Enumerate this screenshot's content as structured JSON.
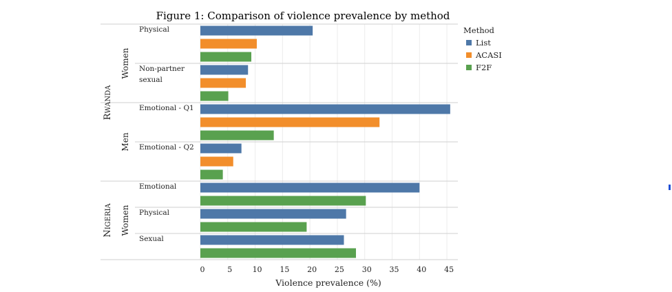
{
  "colors": {
    "List": "#4e78a8",
    "ACASI": "#f28e2b",
    "F2F": "#59a14f",
    "edge_marker": "#1f4fd6"
  },
  "chart_data": {
    "type": "bar",
    "orientation": "horizontal",
    "title": "Figure 1: Comparison of violence prevalence by method",
    "xlabel": "Violence prevalence (%)",
    "xlim": [
      0,
      47
    ],
    "xticks": [
      0,
      5,
      10,
      15,
      20,
      25,
      30,
      35,
      40,
      45
    ],
    "grid": "vertical",
    "legend": {
      "title": "Method",
      "placement": "right",
      "entries": [
        "List",
        "ACASI",
        "F2F"
      ]
    },
    "countries": [
      {
        "name": "Rwanda",
        "groups": [
          {
            "name": "Women",
            "rows": [
              {
                "label": [
                  "Physical"
                ],
                "bars": [
                  {
                    "method": "List",
                    "value": 20.5
                  },
                  {
                    "method": "ACASI",
                    "value": 10.3
                  },
                  {
                    "method": "F2F",
                    "value": 9.3
                  }
                ]
              },
              {
                "label": [
                  "Non-partner",
                  "sexual"
                ],
                "bars": [
                  {
                    "method": "List",
                    "value": 8.7
                  },
                  {
                    "method": "ACASI",
                    "value": 8.3
                  },
                  {
                    "method": "F2F",
                    "value": 5.1
                  }
                ]
              }
            ]
          },
          {
            "name": "Men",
            "rows": [
              {
                "label": [
                  "Emotional - Q1"
                ],
                "bars": [
                  {
                    "method": "List",
                    "value": 45.6
                  },
                  {
                    "method": "ACASI",
                    "value": 32.7
                  },
                  {
                    "method": "F2F",
                    "value": 13.4
                  }
                ]
              },
              {
                "label": [
                  "Emotional - Q2"
                ],
                "bars": [
                  {
                    "method": "List",
                    "value": 7.5
                  },
                  {
                    "method": "ACASI",
                    "value": 6.0
                  },
                  {
                    "method": "F2F",
                    "value": 4.1
                  }
                ]
              }
            ]
          }
        ]
      },
      {
        "name": "Nigeria",
        "groups": [
          {
            "name": "Women",
            "rows": [
              {
                "label": [
                  "Emotional"
                ],
                "bars": [
                  {
                    "method": "List",
                    "value": 40.0
                  },
                  {
                    "method": "F2F",
                    "value": 30.2
                  }
                ]
              },
              {
                "label": [
                  "Physical"
                ],
                "bars": [
                  {
                    "method": "List",
                    "value": 26.6
                  },
                  {
                    "method": "F2F",
                    "value": 19.4
                  }
                ]
              },
              {
                "label": [
                  "Sexual"
                ],
                "bars": [
                  {
                    "method": "List",
                    "value": 26.2
                  },
                  {
                    "method": "F2F",
                    "value": 28.4
                  }
                ]
              }
            ]
          }
        ]
      }
    ]
  }
}
